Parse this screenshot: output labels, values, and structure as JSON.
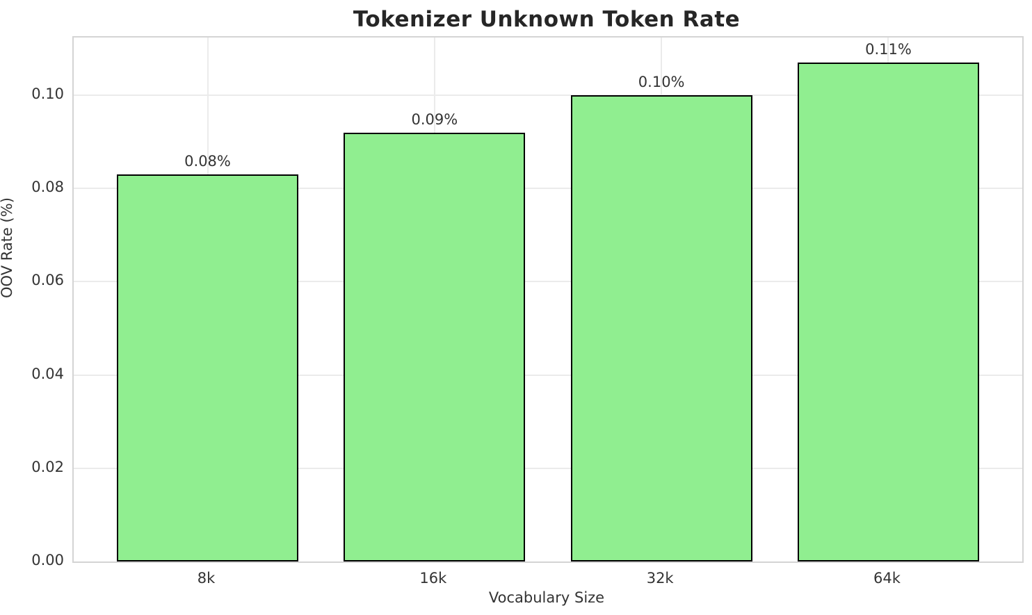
{
  "chart_data": {
    "type": "bar",
    "title": "Tokenizer Unknown Token Rate",
    "xlabel": "Vocabulary Size",
    "ylabel": "OOV Rate (%)",
    "categories": [
      "8k",
      "16k",
      "32k",
      "64k"
    ],
    "values": [
      0.083,
      0.092,
      0.1,
      0.107
    ],
    "bar_labels": [
      "0.08%",
      "0.09%",
      "0.10%",
      "0.11%"
    ],
    "yticks": [
      {
        "value": 0.0,
        "label": "0.00"
      },
      {
        "value": 0.02,
        "label": "0.02"
      },
      {
        "value": 0.04,
        "label": "0.04"
      },
      {
        "value": 0.06,
        "label": "0.06"
      },
      {
        "value": 0.08,
        "label": "0.08"
      },
      {
        "value": 0.1,
        "label": "0.10"
      }
    ],
    "ylim": [
      0,
      0.11235
    ],
    "xlim": [
      -0.59,
      3.59
    ],
    "bar_width_units": 0.8,
    "grid": true,
    "legend_position": "none",
    "colors": {
      "bar_fill": "#90EE90",
      "bar_edge": "#000000",
      "grid": "#ebebeb",
      "spine": "#d4d4d4",
      "text": "#333333",
      "title": "#262626",
      "background": "#ffffff"
    }
  }
}
